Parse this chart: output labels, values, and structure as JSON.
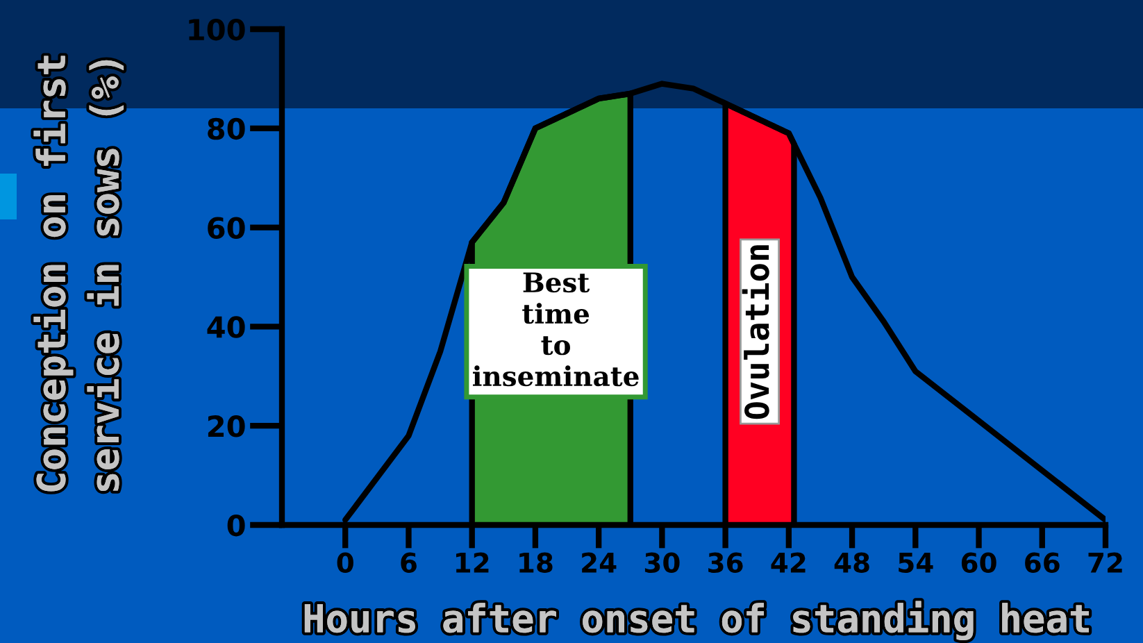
{
  "chart_data": {
    "type": "line",
    "xlabel": "Hours after onset of standing heat",
    "ylabel": "Conception on first service in sows (%)",
    "x": [
      0,
      6,
      9,
      12,
      15,
      18,
      21,
      24,
      27,
      30,
      33,
      36,
      39,
      42,
      45,
      48,
      51,
      54,
      60,
      66,
      72
    ],
    "series": [
      {
        "color": "#000000",
        "values": [
          1,
          18,
          35,
          57,
          65,
          80,
          83,
          86,
          87,
          89,
          88,
          85,
          82,
          79,
          66,
          50,
          41,
          31,
          21,
          11,
          1
        ]
      }
    ],
    "xlim": [
      -6,
      72
    ],
    "xticks": [
      0,
      6,
      12,
      18,
      24,
      30,
      36,
      42,
      48,
      54,
      60,
      66,
      72
    ],
    "ylim": [
      0,
      100
    ],
    "yticks": [
      0,
      20,
      40,
      60,
      80,
      100
    ],
    "bands": [
      {
        "axis": "x",
        "from": 12,
        "to": 27,
        "label": "Best time to inseminate",
        "color": "#339933"
      },
      {
        "axis": "x",
        "from": 36,
        "to": 42.5,
        "label": "Ovulation",
        "color": "#ff0022"
      }
    ],
    "grid": false,
    "marker": "none",
    "line_style": "solid"
  }
}
